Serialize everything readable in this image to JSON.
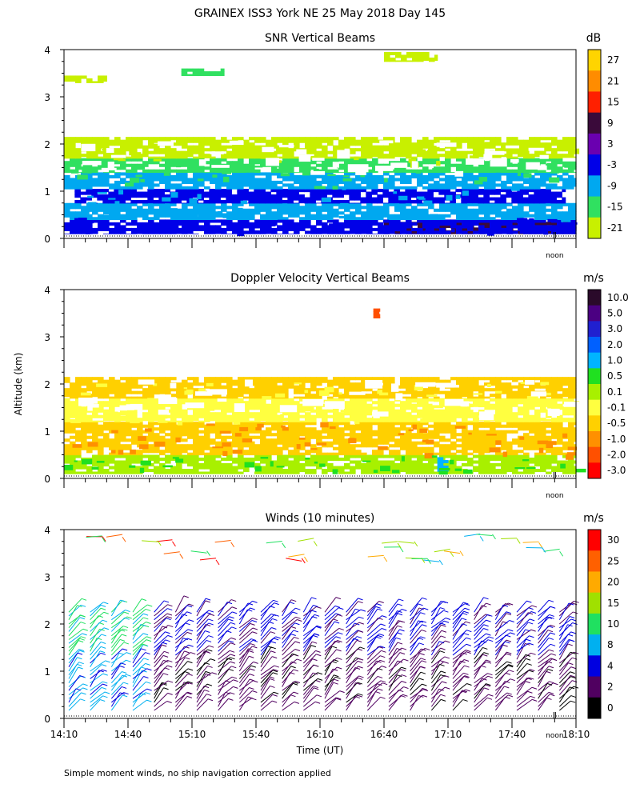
{
  "header": {
    "title": "GRAINEX ISS3 York NE  25 May 2018 Day 145"
  },
  "shared": {
    "ylabel": "Altitude (km)",
    "xlabel": "Time (UT)",
    "noon_label": "noon",
    "xtick_labels": [
      "14:10",
      "14:40",
      "15:10",
      "15:40",
      "16:10",
      "16:40",
      "17:10",
      "17:40",
      "18:10"
    ],
    "ytick_labels": [
      "0",
      "1",
      "2",
      "3",
      "4"
    ],
    "xlim": [
      0,
      240
    ],
    "ylim": [
      0,
      4
    ],
    "noon_minutes": 230
  },
  "footer": {
    "note": "Simple moment winds, no ship navigation correction applied"
  },
  "chart_data": [
    {
      "type": "heatmap",
      "title": "SNR Vertical Beams",
      "colorbar_unit": "dB",
      "colorbar_ticks": [
        "27",
        "21",
        "15",
        "9",
        "3",
        "-3",
        "-9",
        "-15",
        "-21"
      ],
      "colorbar_colors": [
        "#ffd400",
        "#ff8c00",
        "#ff2000",
        "#3a0a3a",
        "#6a00b0",
        "#0000e8",
        "#00a8f0",
        "#30e060",
        "#c8f000"
      ],
      "x_range_minutes": [
        0,
        240
      ],
      "y_range_km": [
        0,
        4
      ],
      "bands": [
        {
          "y0": 0.1,
          "y1": 0.35,
          "color": "#3a0a3a",
          "x0": 150,
          "x1": 240
        },
        {
          "y0": 0.1,
          "y1": 0.4,
          "color": "#0000e8",
          "x0": 0,
          "x1": 240
        },
        {
          "y0": 0.4,
          "y1": 0.75,
          "color": "#00a8f0",
          "x0": 0,
          "x1": 240
        },
        {
          "y0": 0.75,
          "y1": 1.05,
          "color": "#0000e8",
          "x0": 5,
          "x1": 235
        },
        {
          "y0": 1.05,
          "y1": 1.4,
          "color": "#00a8f0",
          "x0": 0,
          "x1": 240
        },
        {
          "y0": 1.4,
          "y1": 1.7,
          "color": "#30e060",
          "x0": 0,
          "x1": 240
        },
        {
          "y0": 1.7,
          "y1": 2.15,
          "color": "#c8f000",
          "x0": 0,
          "x1": 240
        },
        {
          "y0": 3.3,
          "y1": 3.45,
          "color": "#c8f000",
          "x0": 0,
          "x1": 20
        },
        {
          "y0": 3.45,
          "y1": 3.6,
          "color": "#30e060",
          "x0": 55,
          "x1": 75
        },
        {
          "y0": 3.75,
          "y1": 3.95,
          "color": "#c8f000",
          "x0": 150,
          "x1": 175
        }
      ]
    },
    {
      "type": "heatmap",
      "title": "Doppler Velocity Vertical Beams",
      "colorbar_unit": "m/s",
      "colorbar_ticks": [
        "10.0",
        "5.0",
        "3.0",
        "2.0",
        "1.0",
        "0.5",
        "0.1",
        "-0.1",
        "-0.5",
        "-1.0",
        "-2.0",
        "-3.0"
      ],
      "colorbar_colors": [
        "#2a0a2a",
        "#4b0082",
        "#2020d0",
        "#0060ff",
        "#00b4ff",
        "#20e020",
        "#a8f000",
        "#ffff40",
        "#ffd000",
        "#ff9000",
        "#ff5000",
        "#ff0000"
      ],
      "x_range_minutes": [
        0,
        240
      ],
      "y_range_km": [
        0,
        4
      ],
      "bands": [
        {
          "y0": 0.1,
          "y1": 0.5,
          "color": "#a8f000",
          "x0": 0,
          "x1": 240
        },
        {
          "y0": 0.5,
          "y1": 1.2,
          "color": "#ffd000",
          "x0": 0,
          "x1": 240
        },
        {
          "y0": 1.2,
          "y1": 1.7,
          "color": "#ffff40",
          "x0": 0,
          "x1": 240
        },
        {
          "y0": 1.7,
          "y1": 2.15,
          "color": "#ffd000",
          "x0": 0,
          "x1": 240
        },
        {
          "y0": 0.15,
          "y1": 0.45,
          "color": "#00b4ff",
          "x0": 175,
          "x1": 180
        },
        {
          "y0": 3.4,
          "y1": 3.6,
          "color": "#ff5000",
          "x0": 145,
          "x1": 148
        }
      ]
    },
    {
      "type": "scatter",
      "title": "Winds (10 minutes)",
      "colorbar_unit": "m/s",
      "colorbar_ticks": [
        "30",
        "25",
        "20",
        "15",
        "10",
        "8",
        "4",
        "2",
        "0"
      ],
      "colorbar_colors": [
        "#ff0000",
        "#ff6000",
        "#ffaa00",
        "#a0e000",
        "#20e060",
        "#00b0f0",
        "#0000e0",
        "#500060",
        "#000000"
      ],
      "marker": "wind barbs",
      "interval_minutes": 10,
      "time_minutes": [
        0,
        10,
        20,
        30,
        40,
        50,
        60,
        70,
        80,
        90,
        100,
        110,
        120,
        130,
        140,
        150,
        160,
        170,
        180,
        190,
        200,
        210,
        220,
        230
      ],
      "barb_altitudes_km": [
        0.25,
        0.5,
        0.75,
        1.0,
        1.25,
        1.5,
        1.75,
        2.0,
        2.25
      ],
      "upper_level_barbs_km": [
        3.5,
        3.8
      ]
    }
  ]
}
